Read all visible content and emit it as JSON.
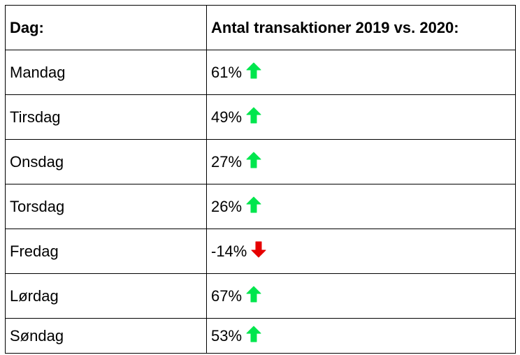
{
  "table": {
    "headers": {
      "day": "Dag:",
      "change": "Antal transaktioner 2019 vs. 2020:"
    },
    "rows": [
      {
        "day": "Mandag",
        "change": "61%",
        "direction": "up"
      },
      {
        "day": "Tirsdag",
        "change": "49%",
        "direction": "up"
      },
      {
        "day": "Onsdag",
        "change": "27%",
        "direction": "up"
      },
      {
        "day": "Torsdag",
        "change": "26%",
        "direction": "up"
      },
      {
        "day": "Fredag",
        "change": "-14%",
        "direction": "down"
      },
      {
        "day": "Lørdag",
        "change": "67%",
        "direction": "up"
      },
      {
        "day": "Søndag",
        "change": "53%",
        "direction": "up"
      }
    ]
  },
  "icons": {
    "up": "arrow-up-icon",
    "down": "arrow-down-icon"
  },
  "colors": {
    "up": "#00e64d",
    "down": "#e60000",
    "border": "#000000"
  }
}
